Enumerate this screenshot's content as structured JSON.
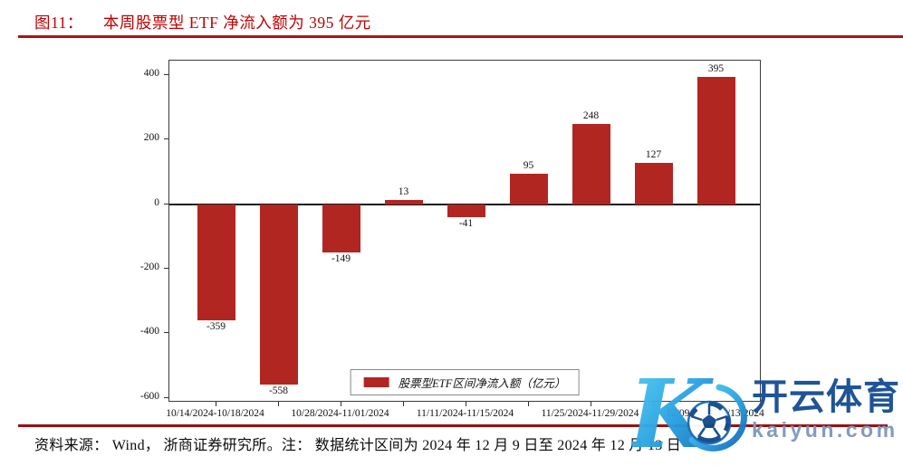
{
  "figure": {
    "label": "图11：",
    "title": "本周股票型 ETF 净流入额为 395 亿元",
    "source_note": "资料来源：  Wind，  浙商证券研究所。注：  数据统计区间为 2024 年 12 月 9 日至 2024 年 12 月 13 日"
  },
  "chart_data": {
    "type": "bar",
    "title": "图11： 本周股票型 ETF 净流入额为 395 亿元",
    "legend": [
      "股票型ETF区间净流入额（亿元）"
    ],
    "legend_position": "lower center",
    "values": [
      -359,
      -558,
      -149,
      13,
      -41,
      95,
      248,
      127,
      395
    ],
    "x_tick_labels": [
      "10/14/2024-10/18/2024",
      "10/28/2024-11/01/2024",
      "11/11/2024-11/15/2024",
      "11/25/2024-11/29/2024",
      "12/09/2024-12/13/2024"
    ],
    "x_tick_positions": [
      0,
      2,
      4,
      6,
      8
    ],
    "yticks": [
      400,
      200,
      0,
      -200,
      -400,
      -600
    ],
    "ylim": [
      -615,
      445
    ],
    "grid": false,
    "xlabel": "",
    "ylabel": "",
    "bar_color": "#b22622"
  },
  "watermark": {
    "logo_letter": "K",
    "brand": "开云体育",
    "domain": "kaiyun.com",
    "brand_color": "#164e92",
    "domain_color": "#7d99bd"
  },
  "colors": {
    "title_red": "#c00000",
    "title_rule_red": "#aa1414",
    "footer_rule_red": "#991010"
  }
}
